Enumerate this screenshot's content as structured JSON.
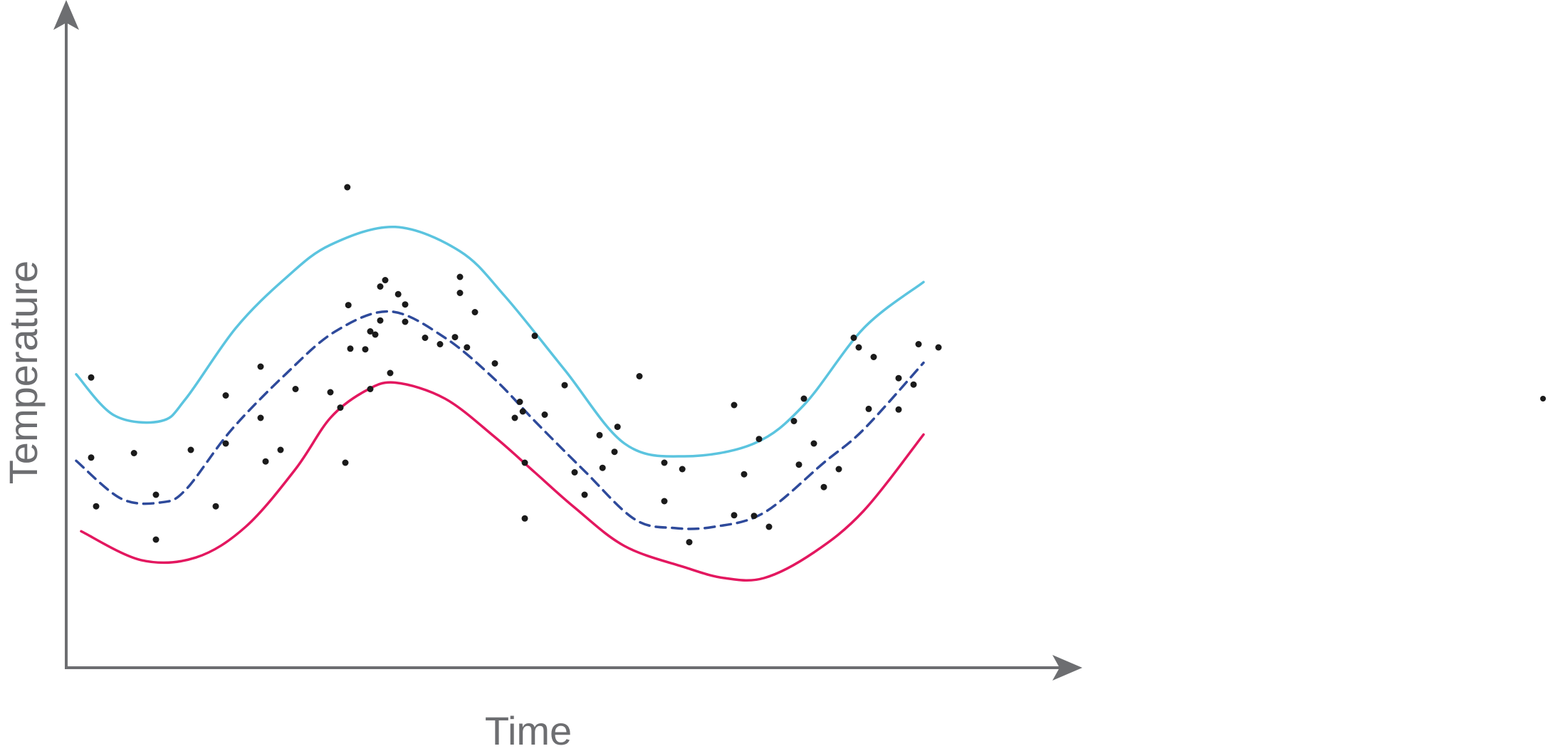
{
  "chart_data": {
    "type": "scatter",
    "xlabel": "Time",
    "ylabel": "Temperature",
    "xlim": [
      0,
      1000
    ],
    "ylim": [
      0,
      1000
    ],
    "grid": false,
    "ticks": false,
    "colors": {
      "axis": "#6d6e71",
      "upper_curve": "#5bc4df",
      "mean_curve": "#2e4a9b",
      "lower_curve": "#e3175f",
      "points": "#1a1a1a"
    },
    "series": [
      {
        "kind": "line",
        "style": "solid",
        "color": "#5bc4df",
        "points": [
          [
            10,
            458
          ],
          [
            48,
            394
          ],
          [
            95,
            385
          ],
          [
            120,
            420
          ],
          [
            170,
            530
          ],
          [
            220,
            608
          ],
          [
            265,
            660
          ],
          [
            330,
            688
          ],
          [
            395,
            650
          ],
          [
            440,
            580
          ],
          [
            500,
            465
          ],
          [
            560,
            350
          ],
          [
            620,
            330
          ],
          [
            690,
            350
          ],
          [
            740,
            410
          ],
          [
            800,
            530
          ],
          [
            860,
            602
          ]
        ]
      },
      {
        "kind": "line",
        "style": "dashed",
        "color": "#2e4a9b",
        "points": [
          [
            10,
            323
          ],
          [
            55,
            264
          ],
          [
            95,
            258
          ],
          [
            120,
            278
          ],
          [
            165,
            370
          ],
          [
            220,
            458
          ],
          [
            270,
            525
          ],
          [
            325,
            556
          ],
          [
            380,
            515
          ],
          [
            430,
            450
          ],
          [
            470,
            385
          ],
          [
            520,
            307
          ],
          [
            570,
            232
          ],
          [
            610,
            218
          ],
          [
            650,
            220
          ],
          [
            700,
            242
          ],
          [
            760,
            320
          ],
          [
            800,
            372
          ],
          [
            860,
            476
          ]
        ]
      },
      {
        "kind": "line",
        "style": "solid",
        "color": "#e3175f",
        "points": [
          [
            15,
            213
          ],
          [
            75,
            168
          ],
          [
            130,
            172
          ],
          [
            180,
            220
          ],
          [
            230,
            310
          ],
          [
            265,
            390
          ],
          [
            300,
            432
          ],
          [
            330,
            445
          ],
          [
            380,
            420
          ],
          [
            430,
            360
          ],
          [
            470,
            305
          ],
          [
            510,
            250
          ],
          [
            560,
            190
          ],
          [
            620,
            157
          ],
          [
            660,
            140
          ],
          [
            700,
            140
          ],
          [
            750,
            180
          ],
          [
            800,
            245
          ],
          [
            860,
            364
          ]
        ]
      },
      {
        "kind": "scatter",
        "color": "#1a1a1a",
        "points": [
          [
            25,
            453
          ],
          [
            25,
            328
          ],
          [
            30,
            252
          ],
          [
            68,
            335
          ],
          [
            90,
            270
          ],
          [
            90,
            200
          ],
          [
            125,
            340
          ],
          [
            150,
            252
          ],
          [
            160,
            425
          ],
          [
            160,
            350
          ],
          [
            195,
            470
          ],
          [
            195,
            390
          ],
          [
            200,
            322
          ],
          [
            215,
            340
          ],
          [
            230,
            435
          ],
          [
            265,
            430
          ],
          [
            275,
            406
          ],
          [
            280,
            320
          ],
          [
            282,
            750
          ],
          [
            283,
            566
          ],
          [
            285,
            498
          ],
          [
            300,
            497
          ],
          [
            305,
            525
          ],
          [
            305,
            435
          ],
          [
            310,
            520
          ],
          [
            315,
            595
          ],
          [
            315,
            542
          ],
          [
            320,
            605
          ],
          [
            325,
            460
          ],
          [
            333,
            583
          ],
          [
            340,
            567
          ],
          [
            340,
            540
          ],
          [
            360,
            515
          ],
          [
            375,
            505
          ],
          [
            390,
            516
          ],
          [
            395,
            610
          ],
          [
            395,
            585
          ],
          [
            402,
            500
          ],
          [
            410,
            555
          ],
          [
            430,
            475
          ],
          [
            450,
            390
          ],
          [
            455,
            415
          ],
          [
            458,
            400
          ],
          [
            460,
            320
          ],
          [
            460,
            233
          ],
          [
            470,
            518
          ],
          [
            480,
            395
          ],
          [
            500,
            441
          ],
          [
            510,
            305
          ],
          [
            520,
            270
          ],
          [
            535,
            363
          ],
          [
            538,
            312
          ],
          [
            550,
            337
          ],
          [
            553,
            376
          ],
          [
            575,
            455
          ],
          [
            600,
            320
          ],
          [
            600,
            260
          ],
          [
            618,
            310
          ],
          [
            625,
            196
          ],
          [
            670,
            410
          ],
          [
            670,
            238
          ],
          [
            680,
            302
          ],
          [
            690,
            237
          ],
          [
            695,
            357
          ],
          [
            705,
            220
          ],
          [
            730,
            385
          ],
          [
            735,
            317
          ],
          [
            740,
            420
          ],
          [
            750,
            350
          ],
          [
            760,
            282
          ],
          [
            775,
            310
          ],
          [
            790,
            515
          ],
          [
            795,
            500
          ],
          [
            805,
            404
          ],
          [
            810,
            485
          ],
          [
            835,
            452
          ],
          [
            835,
            403
          ],
          [
            850,
            442
          ],
          [
            855,
            505
          ],
          [
            875,
            500
          ]
        ]
      }
    ]
  }
}
